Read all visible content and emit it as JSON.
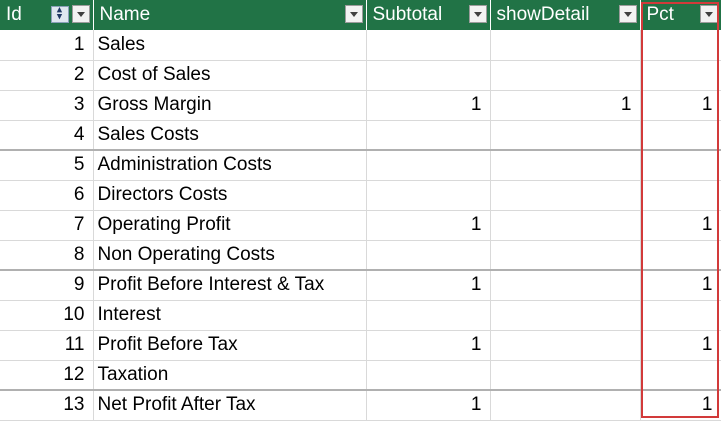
{
  "columns": {
    "id": "Id",
    "name": "Name",
    "subtotal": "Subtotal",
    "show_detail": "showDetail",
    "pct": "Pct"
  },
  "rows": [
    {
      "id": "1",
      "name": "Sales",
      "subtotal": "",
      "show_detail": "",
      "pct": ""
    },
    {
      "id": "2",
      "name": "Cost of Sales",
      "subtotal": "",
      "show_detail": "",
      "pct": ""
    },
    {
      "id": "3",
      "name": "Gross Margin",
      "subtotal": "1",
      "show_detail": "1",
      "pct": "1"
    },
    {
      "id": "4",
      "name": "Sales Costs",
      "subtotal": "",
      "show_detail": "",
      "pct": ""
    },
    {
      "id": "5",
      "name": "Administration Costs",
      "subtotal": "",
      "show_detail": "",
      "pct": ""
    },
    {
      "id": "6",
      "name": "Directors Costs",
      "subtotal": "",
      "show_detail": "",
      "pct": ""
    },
    {
      "id": "7",
      "name": "Operating Profit",
      "subtotal": "1",
      "show_detail": "",
      "pct": "1"
    },
    {
      "id": "8",
      "name": "Non Operating Costs",
      "subtotal": "",
      "show_detail": "",
      "pct": ""
    },
    {
      "id": "9",
      "name": "Profit Before Interest & Tax",
      "subtotal": "1",
      "show_detail": "",
      "pct": "1"
    },
    {
      "id": "10",
      "name": "Interest",
      "subtotal": "",
      "show_detail": "",
      "pct": ""
    },
    {
      "id": "11",
      "name": "Profit Before Tax",
      "subtotal": "1",
      "show_detail": "",
      "pct": "1"
    },
    {
      "id": "12",
      "name": "Taxation",
      "subtotal": "",
      "show_detail": "",
      "pct": ""
    },
    {
      "id": "13",
      "name": "Net Profit After Tax",
      "subtotal": "1",
      "show_detail": "",
      "pct": "1"
    }
  ],
  "icons": {
    "filter": "filter-dropdown-icon",
    "sort": "sort-ascending-icon"
  },
  "colors": {
    "header_bg": "#217346",
    "highlight_border": "#d23a3a"
  }
}
